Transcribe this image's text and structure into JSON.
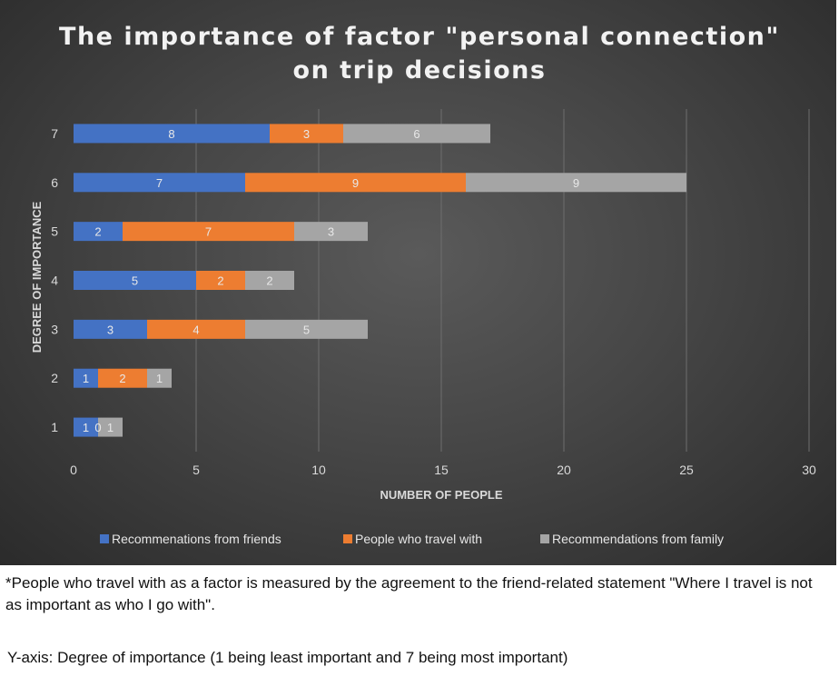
{
  "chart_data": {
    "type": "bar",
    "orientation": "horizontal",
    "stacked": true,
    "title_lines": [
      "The importance of factor \"personal connection\"",
      "on trip decisions"
    ],
    "xlabel": "NUMBER OF PEOPLE",
    "ylabel": "DEGREE OF IMPORTANCE",
    "categories": [
      "1",
      "2",
      "3",
      "4",
      "5",
      "6",
      "7"
    ],
    "xlim": [
      0,
      30
    ],
    "xticks": [
      0,
      5,
      10,
      15,
      20,
      25,
      30
    ],
    "grid": "vertical",
    "legend_position": "bottom",
    "series": [
      {
        "name": "Recommenations from friends",
        "color": "#4472c4",
        "values": [
          1,
          1,
          3,
          5,
          2,
          7,
          8
        ]
      },
      {
        "name": "People who travel with",
        "color": "#ed7d31",
        "values": [
          0,
          2,
          4,
          2,
          7,
          9,
          3
        ]
      },
      {
        "name": "Recommendations from family",
        "color": "#a5a5a5",
        "values": [
          1,
          1,
          5,
          2,
          3,
          9,
          6
        ]
      }
    ]
  },
  "notes": {
    "footnote": "*People who travel with as a factor is measured by the agreement to the friend-related statement \"Where I travel is not as important as who I go with\".",
    "yaxis": "Y-axis: Degree of importance (1 being least important and 7 being most important)"
  }
}
